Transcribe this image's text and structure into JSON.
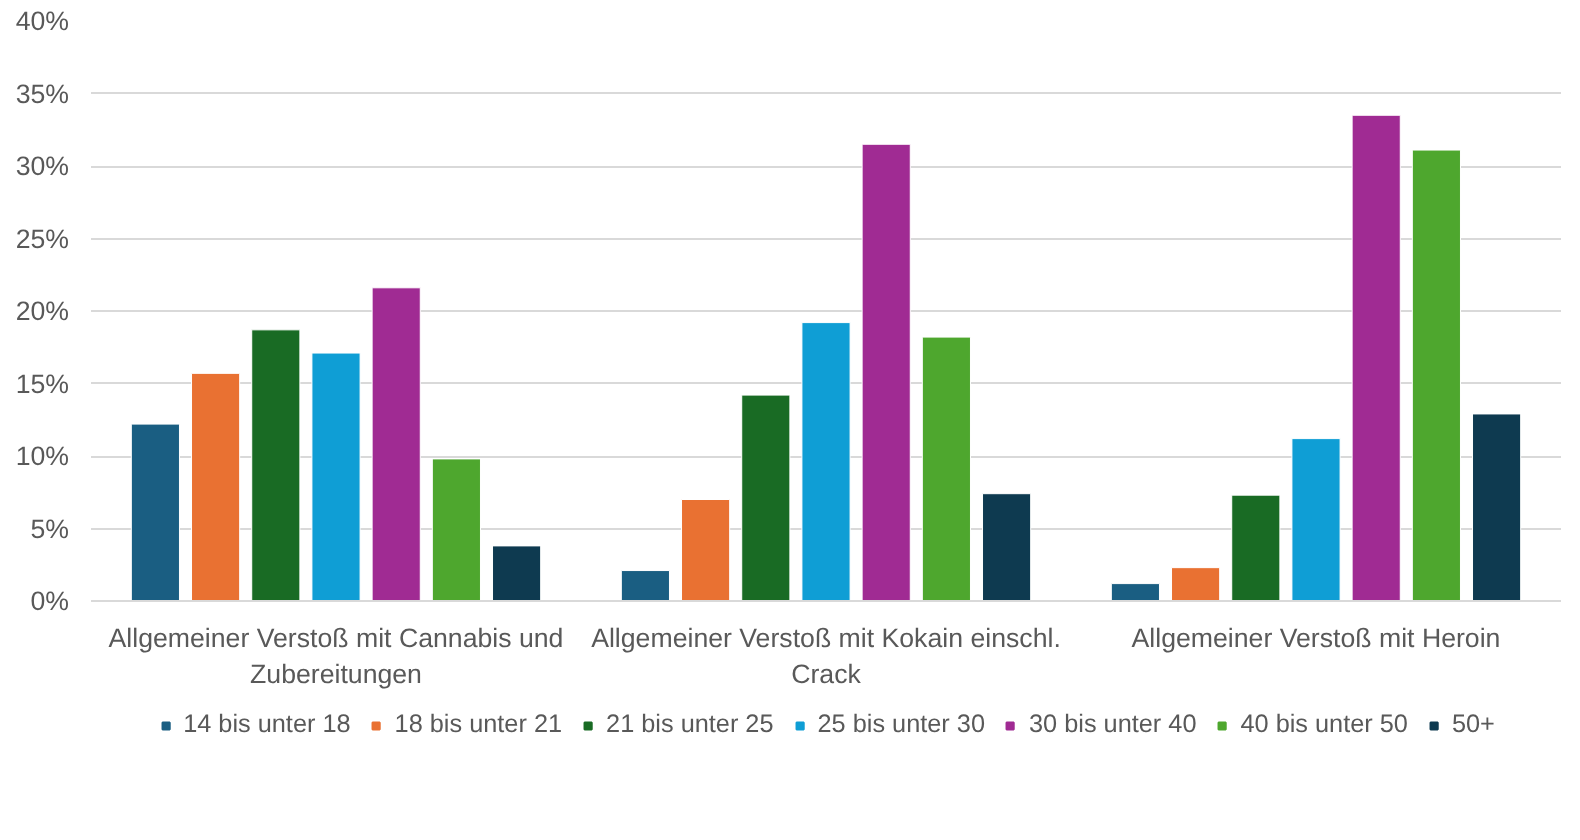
{
  "chart_data": {
    "type": "bar",
    "categories": [
      "Allgemeiner Verstoß mit Cannabis und Zubereitungen",
      "Allgemeiner Verstoß mit Kokain einschl. Crack",
      "Allgemeiner Verstoß mit Heroin"
    ],
    "series": [
      {
        "name": "14 bis unter 18",
        "color": "#1a5e82",
        "values": [
          12.2,
          2.1,
          1.2
        ]
      },
      {
        "name": "18 bis unter 21",
        "color": "#e97132",
        "values": [
          15.7,
          7.0,
          2.3
        ]
      },
      {
        "name": "21 bis unter 25",
        "color": "#196b24",
        "values": [
          18.7,
          14.2,
          7.3
        ]
      },
      {
        "name": "25 bis unter 30",
        "color": "#0f9ed5",
        "values": [
          17.1,
          19.2,
          11.2
        ]
      },
      {
        "name": "30 bis unter 40",
        "color": "#a02b93",
        "values": [
          21.6,
          31.5,
          33.5
        ]
      },
      {
        "name": "40 bis unter 50",
        "color": "#4ea72e",
        "values": [
          9.8,
          18.2,
          31.1
        ]
      },
      {
        "name": "50+",
        "color": "#0e3a50",
        "values": [
          3.8,
          7.4,
          12.9
        ]
      }
    ],
    "ylim": [
      0,
      40
    ],
    "yticks": [
      {
        "value": 0,
        "label": "0%"
      },
      {
        "value": 5,
        "label": "5%"
      },
      {
        "value": 10,
        "label": "10%"
      },
      {
        "value": 15,
        "label": "15%"
      },
      {
        "value": 20,
        "label": "20%"
      },
      {
        "value": 25,
        "label": "25%"
      },
      {
        "value": 30,
        "label": "30%"
      },
      {
        "value": 35,
        "label": "35%"
      },
      {
        "value": 40,
        "label": "40%"
      }
    ],
    "grid": "y",
    "legend": "bottom"
  }
}
